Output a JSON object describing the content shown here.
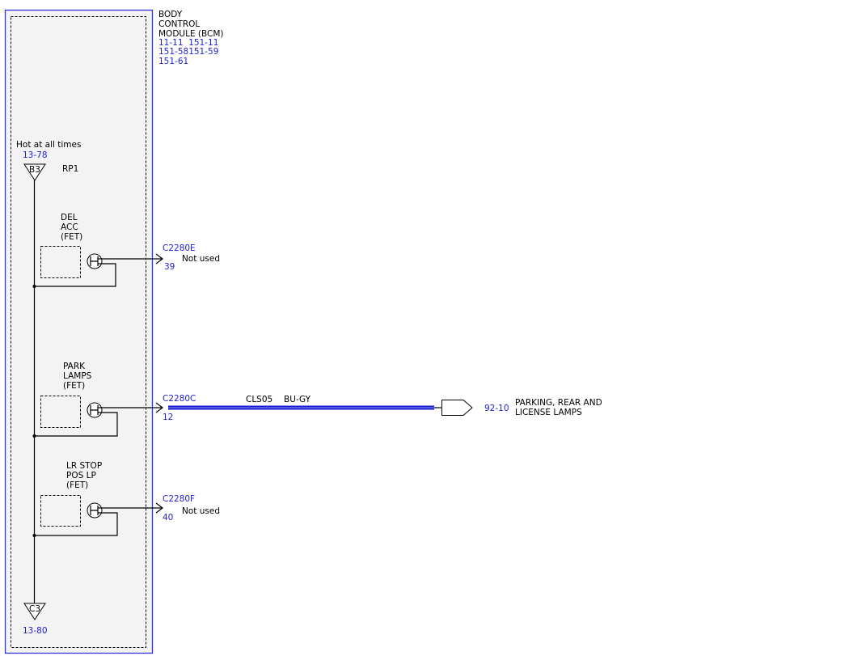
{
  "module": {
    "title_lines": [
      "BODY",
      "CONTROL",
      "MODULE (BCM)"
    ],
    "refs": [
      "11-11  151-11",
      "151-58151-59",
      "151-61"
    ]
  },
  "power": {
    "label": "Hot at all times",
    "ref": "13-78",
    "pin": "B3",
    "name": "RP1"
  },
  "ground": {
    "pin": "C3",
    "ref": "13-80"
  },
  "switches": [
    {
      "label_lines": [
        "DEL",
        "ACC",
        "(FET)"
      ],
      "connector": "C2280E",
      "pin": "39",
      "note": "Not used"
    },
    {
      "label_lines": [
        "PARK",
        "LAMPS",
        "(FET)"
      ],
      "connector": "C2280C",
      "pin": "12",
      "circuit": "CLS05",
      "wire_color": "BU-GY",
      "dest_ref": "92-10",
      "dest_lines": [
        "PARKING, REAR AND",
        "LICENSE LAMPS"
      ]
    },
    {
      "label_lines": [
        "LR STOP",
        "POS LP",
        "(FET)"
      ],
      "connector": "C2280F",
      "pin": "40",
      "note": "Not used"
    }
  ]
}
